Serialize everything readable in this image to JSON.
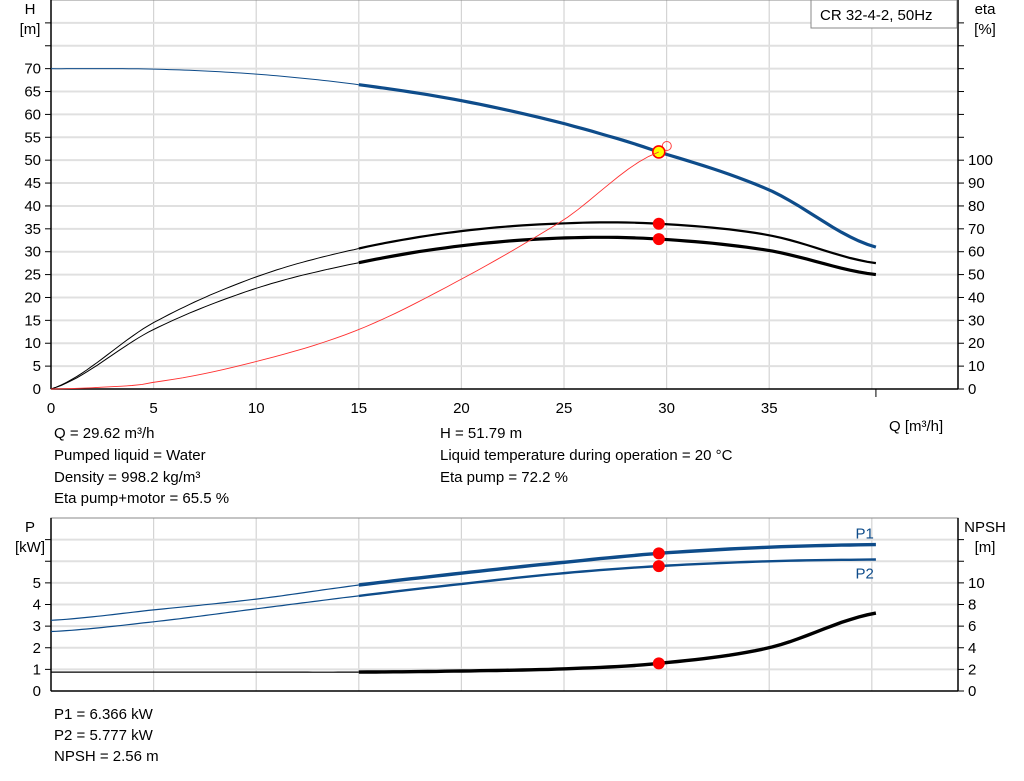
{
  "chart_data": [
    {
      "type": "line",
      "title": "CR 32-4-2, 50Hz",
      "xlabel": "Q [m³/h]",
      "ylabel": "H\n[m]",
      "ylabel_right": "eta\n[%]",
      "xlim": [
        0,
        44.2
      ],
      "ylim": [
        0,
        85
      ],
      "ylim_right": [
        0,
        170
      ],
      "xticks": [
        0,
        5,
        10,
        15,
        20,
        25,
        30,
        35
      ],
      "yticks": [
        0,
        5,
        10,
        15,
        20,
        25,
        30,
        35,
        40,
        45,
        50,
        55,
        60,
        65,
        70
      ],
      "yticks_right": [
        0,
        10,
        20,
        30,
        40,
        50,
        60,
        70,
        80,
        90,
        100
      ],
      "grid": true,
      "series": [
        {
          "id": "head",
          "axis": "left",
          "color": "#0e4c8a",
          "x": [
            0,
            5,
            10,
            15,
            20,
            25,
            29.62,
            35,
            40.2
          ],
          "y": [
            70,
            69.9,
            68.8,
            66.5,
            63,
            58,
            51.79,
            43.5,
            31
          ]
        },
        {
          "id": "eta-pump",
          "axis": "right",
          "color": "#000000",
          "x": [
            0,
            5,
            10,
            15,
            20,
            25,
            29.62,
            35,
            40.2
          ],
          "y": [
            0,
            29,
            49,
            61.4,
            69,
            72.4,
            72.2,
            67.2,
            55
          ]
        },
        {
          "id": "eta-pump-motor",
          "axis": "right",
          "color": "#000000",
          "x": [
            0,
            5,
            10,
            15,
            20,
            25,
            29.62,
            35,
            40.2
          ],
          "y": [
            0,
            26,
            44,
            55.2,
            62.6,
            66,
            65.5,
            60.5,
            50
          ]
        },
        {
          "id": "system-curve",
          "axis": "left",
          "color": "#ff3030",
          "x": [
            0,
            2.5,
            5,
            10,
            15,
            20,
            25,
            29.62
          ],
          "y": [
            0,
            0.4,
            1.5,
            6,
            13,
            24,
            37,
            51.79
          ]
        }
      ],
      "operating_point": {
        "Q": 29.62,
        "H": 51.79,
        "eta_pump": 72.2,
        "eta_pump_motor": 65.5
      },
      "readout": {
        "q": "Q = 29.62 m³/h",
        "liquid": "Pumped liquid = Water",
        "density": "Density = 998.2 kg/m³",
        "eta_total": "Eta pump+motor = 65.5 %",
        "h": "H = 51.79 m",
        "temperature": "Liquid temperature during operation = 20 °C",
        "eta_pump": "Eta pump = 72.2 %"
      }
    },
    {
      "type": "line",
      "ylabel": "P\n[kW]",
      "ylabel_right": "NPSH\n[m]",
      "xlim": [
        0,
        44.2
      ],
      "ylim": [
        0,
        8
      ],
      "ylim_right": [
        0,
        16
      ],
      "yticks": [
        0,
        1,
        2,
        3,
        4,
        5
      ],
      "yticks_right": [
        0,
        2,
        4,
        6,
        8,
        10
      ],
      "grid": true,
      "series": [
        {
          "id": "p1",
          "name": "P1",
          "axis": "left",
          "color": "#0e4c8a",
          "x": [
            0,
            5,
            10,
            15,
            20,
            25,
            29.62,
            35,
            40.2
          ],
          "y": [
            3.27,
            3.75,
            4.25,
            4.9,
            5.45,
            5.95,
            6.366,
            6.65,
            6.77
          ]
        },
        {
          "id": "p2",
          "name": "P2",
          "axis": "left",
          "color": "#0e4c8a",
          "x": [
            0,
            5,
            10,
            15,
            20,
            25,
            29.62,
            35,
            40.2
          ],
          "y": [
            2.75,
            3.2,
            3.8,
            4.4,
            4.95,
            5.45,
            5.777,
            6.0,
            6.08
          ]
        },
        {
          "id": "npsh",
          "axis": "right",
          "color": "#000000",
          "x": [
            0,
            10,
            15,
            20,
            25,
            29.62,
            35,
            40.2
          ],
          "y": [
            1.75,
            1.75,
            1.75,
            1.85,
            2.05,
            2.56,
            4.0,
            7.2
          ]
        }
      ],
      "operating_point": {
        "Q": 29.62,
        "P1": 6.366,
        "P2": 5.777,
        "NPSH": 2.56
      },
      "readout": {
        "p1": "P1 = 6.366 kW",
        "p2": "P2 = 5.777 kW",
        "npsh": "NPSH = 2.56 m"
      }
    }
  ]
}
